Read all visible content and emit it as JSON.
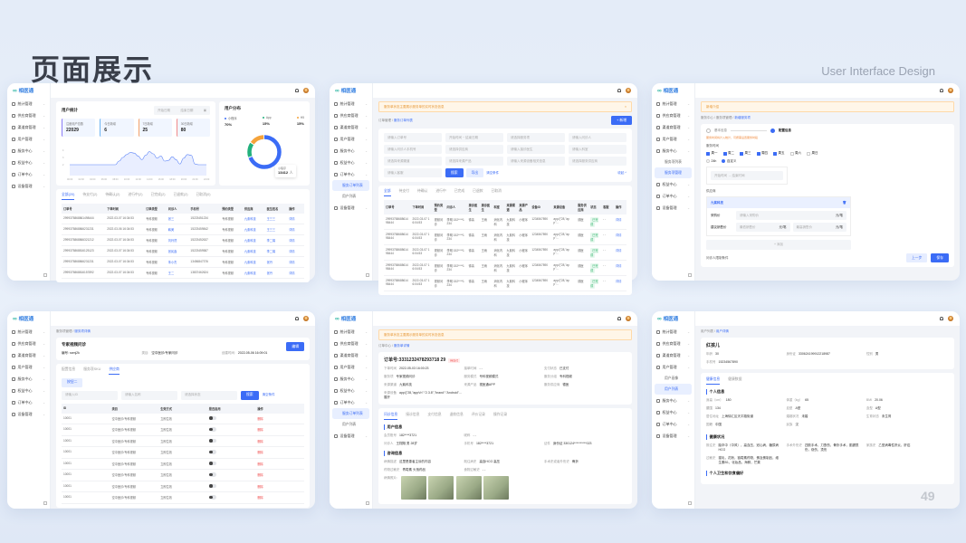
{
  "header": {
    "title": "页面展示",
    "subtitle": "User Interface Design",
    "page_number": "49"
  },
  "brand": {
    "logo": "相医通",
    "accent": "#3b6cf6"
  },
  "sidebar": {
    "items": [
      "统计管理",
      "供应商管理",
      "渠道商管理",
      "用户管理",
      "服务中心",
      "权益中心",
      "订单中心",
      "设备管理"
    ]
  },
  "dashboard": {
    "stats_title": "用户统计",
    "date_start": "开始日期",
    "date_end": "结束日期",
    "cards": [
      {
        "label": "注册用户总数",
        "value": "22029",
        "color": "#8b7cf6"
      },
      {
        "label": "今日新增",
        "value": "6",
        "color": "#6db4f2"
      },
      {
        "label": "7日新增",
        "value": "25",
        "color": "#f5a26b"
      },
      {
        "label": "30日新增",
        "value": "80",
        "color": "#f08a8a"
      }
    ],
    "trend": {
      "y_ticks": [
        "4",
        "3",
        "2"
      ],
      "x_ticks": [
        "00:00",
        "02:00",
        "04:00",
        "06:00",
        "08:00",
        "10:00",
        "12:00",
        "14:00",
        "16:00",
        "18:00",
        "20:00",
        "22:00",
        "24:00"
      ],
      "values": [
        2,
        2,
        2,
        2,
        2,
        2,
        2,
        2,
        2,
        2,
        2,
        2,
        2,
        2.5,
        3,
        3.4,
        3.7,
        3.6,
        3.2,
        2.7,
        3.3,
        3.8,
        3.5,
        2.9,
        3.2,
        2.5,
        2.6,
        3.1,
        2.7,
        2.1,
        2.9,
        3.4,
        3.3,
        2.1,
        2,
        2,
        2
      ]
    },
    "distribution": {
      "title": "用户分布",
      "items": [
        {
          "label": "小程序",
          "pct": "70%",
          "color": "#3b6cf6",
          "value": 70
        },
        {
          "label": "App",
          "pct": "15%",
          "color": "#22b07d",
          "value": 15
        },
        {
          "label": "H5",
          "pct": "15%",
          "color": "#f5a33b",
          "value": 15
        }
      ],
      "tooltip_label": "小程序",
      "tooltip_value": "13412",
      "tooltip_unit": "人"
    },
    "tabs": [
      "全部(20)",
      "待支付(2)",
      "待确认(2)",
      "进行中(2)",
      "已完成(2)",
      "已退款(2)",
      "已取消(0)"
    ],
    "columns": [
      "订单号",
      "下单时间",
      "订单类型",
      "问诊人",
      "手机号",
      "预约类型",
      "供应商",
      "医生姓名",
      "操作"
    ],
    "rows": [
      [
        "2999375868861498444",
        "2022-03-07 16:34:53",
        "专科视频",
        "张三",
        "15223451234",
        "专科视频",
        "九紫科技",
        "王三三",
        "详情"
      ],
      [
        "2999375868866231231",
        "2022-03-06 16:34:53",
        "专科视频",
        "韩美",
        "15223459842",
        "专科视频",
        "九紫科技",
        "王三三",
        "详情"
      ],
      [
        "2999375868866321212",
        "2022-03-07 16:34:53",
        "专科视频",
        "刘玲然",
        "15223452637",
        "专科视频",
        "九紫科技",
        "李二娟",
        "详情"
      ],
      [
        "2999375868816125123",
        "2022-03-07 16:34:53",
        "专科视频",
        "张民鑫",
        "15223459587",
        "专科视频",
        "九紫科技",
        "李二娟",
        "详情"
      ],
      [
        "2999375868866231231",
        "2022-03-07 16:34:53",
        "专科视频",
        "朱小杰",
        "13456847376",
        "专科视频",
        "九紫科技",
        "张丹",
        "详情"
      ],
      [
        "2999375868816157892",
        "2022-03-07 16:34:53",
        "专科视频",
        "王二",
        "13837462624",
        "专科视频",
        "九紫科技",
        "张丹",
        "详情"
      ]
    ]
  },
  "order_list": {
    "sidebar_sub": [
      "服务订单列表",
      "用户列表"
    ],
    "notice": "服务单状态主要展示服务单的实时状态信息",
    "close": "×",
    "crumb": [
      "订单管理",
      "服务订单列表"
    ],
    "add_label": "+ 新增",
    "filters": [
      "请输入订单号",
      "开始时间 ~ 结束日期",
      "请选择服务项",
      "请输入问诊人",
      "请输入问诊人手机号",
      "请选择供应商",
      "请输入接诊医生",
      "请输入科室",
      "请选择来源渠道",
      "请选择来源产品",
      "请输入来源设备相关信息",
      "请选择服务供应商",
      "请输入客服"
    ],
    "search": "搜索",
    "export": "导出",
    "clear": "清空条件",
    "collapse": "收起 ^",
    "tabs": [
      "全部",
      "待支付",
      "待确认",
      "进行中",
      "已完成",
      "已退款",
      "已取消"
    ],
    "columns": [
      "订单号",
      "下单时间",
      "预约类型",
      "问诊人",
      "接诊医生",
      "接诊医生",
      "科室",
      "来源渠道",
      "来源产品",
      "设备ID",
      "来源设备",
      "服务供应商",
      "状态",
      "客服",
      "操作"
    ],
    "row": [
      "2999375868861498444",
      "2022-03-07 16:04:53",
      "视频问诊",
      "李明 152****1234",
      "徐善",
      "王雨",
      "消化内科",
      "九紫科技",
      "小程序",
      "1234567890",
      "app/{\"28,\"app\"...",
      "德医",
      "已完成",
      "- -",
      "详情"
    ],
    "row_count": 5
  },
  "config": {
    "sidebar_sub": [
      "服务项列表",
      "服务项管理"
    ],
    "notice": "新增介绍",
    "crumb": [
      "服务中心",
      "服务项管理",
      "新增服务项"
    ],
    "steps": [
      "基本信息",
      "配置信息"
    ],
    "hint": "服务时间将计入统计，可按需设置服务时段",
    "time_label": "服务时间",
    "days": [
      "周一",
      "周二",
      "周三",
      "周四",
      "周五",
      "周六",
      "周日"
    ],
    "days_checked": 5,
    "radios": [
      "24h",
      "自定义"
    ],
    "time_range": "开始时间 → 结束时间",
    "supplier_label": "供应商",
    "supplier": "九紫科技",
    "price_label": "采购价",
    "price_ph": "请输入采购价",
    "unit": "元/笔",
    "suggest_label": "建议销售价",
    "min_ph": "最低销售价",
    "max_ph": "最高销售价",
    "add": "+ 添加",
    "limit_label": "问诊人限制条件",
    "prev": "上一步",
    "save": "保存"
  },
  "service_detail": {
    "crumb": [
      "服务项管理",
      "服务项详情"
    ],
    "name": "专家视频问诊",
    "code": "编号: sxmj2k",
    "category_k": "类目:",
    "category": "空中医诊/专家问诊",
    "created_k": "创建时间:",
    "created": "2022-05-06 16:09:01",
    "edit": "编辑",
    "tabs": [
      "配置信息",
      "服务项SKU",
      "供应商"
    ],
    "btn2": "按钮二",
    "inputs": [
      "请输入ID",
      "请输入名称",
      "请选择状态"
    ],
    "search": "搜索",
    "clear": "清空条件",
    "columns": [
      "ID",
      "类目",
      "生效方式",
      "是否启用",
      "操作"
    ],
    "row": [
      "10001",
      "空中医诊/专科视频",
      "立即生效",
      "",
      "删除"
    ],
    "row_count": 8
  },
  "order_detail": {
    "sidebar_sub": [
      "服务订单列表",
      "用户列表"
    ],
    "notice": "服务单状态主要展示服务单的实时状态信息",
    "crumb": [
      "订单中心",
      "服务单详情"
    ],
    "order_no_label": "订单号:",
    "order_no": "3331232478293718 29",
    "status": "待支付",
    "fields": [
      [
        "下单时间",
        "2022-05-03 16:00:23"
      ],
      [
        "接单时间",
        "- -"
      ],
      [
        "支付状态",
        "已支付"
      ],
      [
        "服务项",
        "专家视频问诊"
      ],
      [
        "服务模式",
        "专科视频模式"
      ],
      [
        "服务分组",
        "专科视频"
      ],
      [
        "来源渠道",
        "九紫科技"
      ],
      [
        "来源产品",
        "视医通APP"
      ],
      [
        "服务供应商",
        "德医"
      ],
      [
        "来源设备",
        "app/{\"28,\"appVn\":\"2.3.8\",\"brand\":\"Android\"... 展开"
      ]
    ],
    "tabs": [
      "问诊信息",
      "接诊信息",
      "支付信息",
      "退款信息",
      "评价记录",
      "操作记录"
    ],
    "user_title": "用户信息",
    "user": [
      [
        "会员账号",
        "182****3721"
      ],
      [
        "昵称",
        "- -"
      ],
      [
        "",
        ""
      ],
      [
        "问诊人",
        "王翔翔 男 28岁"
      ],
      [
        "手机号",
        "182****3721"
      ],
      [
        "证件",
        "身份证 330124**********023"
      ]
    ],
    "consult_title": "咨询信息",
    "consult": [
      [
        "病情描述",
        "这里是患者主诉的内容"
      ],
      [
        "既往病史",
        "高血HCG 高压"
      ],
      [
        "手术史或者外伤史",
        "骨折"
      ],
      [
        "药物过敏史",
        "青霉素 头孢药品"
      ],
      [
        "食物过敏史",
        "- -"
      ]
    ],
    "photos_label": "病情照片:"
  },
  "user_detail": {
    "sidebar_sub": [
      "用户画像",
      "用户列表"
    ],
    "crumb": [
      "用户列表",
      "用户详情"
    ],
    "name": "红孩儿",
    "top": [
      [
        "年龄",
        "30"
      ],
      [
        "身份证",
        "330624199912218987"
      ],
      [
        "性别",
        "男"
      ],
      [
        "手机号",
        "15234567890"
      ]
    ],
    "tabs": [
      "健康信息",
      "健康数据"
    ],
    "personal_title": "个人信息",
    "personal": [
      [
        "身高（cm）",
        "180"
      ],
      [
        "体重（kg）",
        "65"
      ],
      [
        "BMI",
        "20.06"
      ],
      [
        "腰围",
        "134"
      ],
      [
        "血型",
        "A型"
      ],
      [
        "血型",
        "A型"
      ],
      [
        "居住地址",
        "上海徐汇区天平路街道"
      ],
      [
        "婚姻状况",
        "未婚"
      ],
      [
        "生育状态",
        "未生育"
      ],
      [
        "国籍",
        "中国"
      ],
      [
        "民族",
        "汉"
      ]
    ],
    "health_title": "健康状况",
    "health": [
      [
        "既往史",
        "脑卒中（中风），高血压，冠心病，糖尿病HCG"
      ],
      [
        "手术外伤史",
        "四肢手术，刀割伤，骨折手术，肌腱损伤，烧伤，烫伤"
      ],
      [
        "家族史",
        "乙型病毒性肝炎，肝癌"
      ],
      [
        "过敏史",
        "猫毛，花粉，链霉素药物，蛋及蛋制品，维生素B1，化妆品，海鲜，芒果"
      ]
    ],
    "more_title": "个人卫生和饮食偏好"
  }
}
